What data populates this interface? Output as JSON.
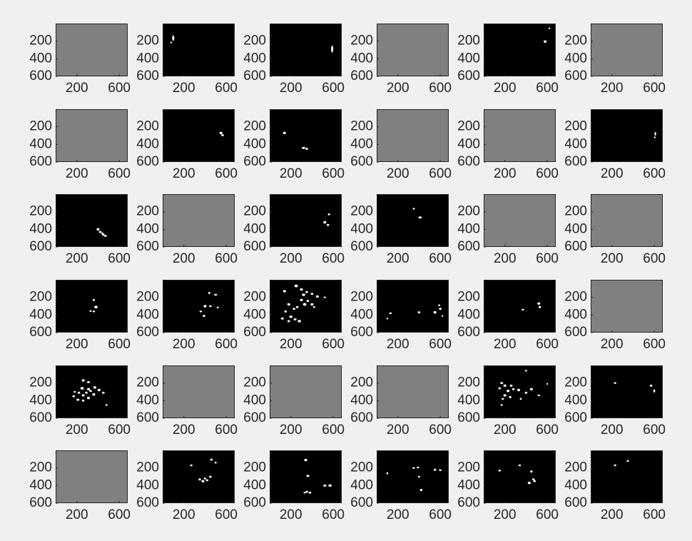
{
  "chart_data": {
    "type": "image-grid",
    "rows": 6,
    "cols": 6,
    "image_size": {
      "width": 680,
      "height": 600
    },
    "xticks": [
      200,
      600
    ],
    "yticks": [
      200,
      400,
      600
    ],
    "colors": {
      "figure_background": "#f0f0f0",
      "blank_panel": "#808080",
      "mask_background": "#000000",
      "blob": "#ffffff",
      "axis": "#262626"
    },
    "panels": [
      {
        "kind": "blank",
        "blobs": []
      },
      {
        "kind": "mask",
        "blobs": [
          [
            100,
            165,
            10,
            30
          ],
          [
            80,
            215,
            7,
            10
          ]
        ]
      },
      {
        "kind": "mask",
        "blobs": [
          [
            590,
            290,
            10,
            40
          ]
        ]
      },
      {
        "kind": "blank",
        "blobs": []
      },
      {
        "kind": "mask",
        "blobs": [
          [
            580,
            205,
            14,
            14
          ],
          [
            620,
            55,
            8,
            6
          ]
        ]
      },
      {
        "kind": "blank",
        "blobs": []
      },
      {
        "kind": "blank",
        "blobs": []
      },
      {
        "kind": "mask",
        "blobs": [
          [
            550,
            270,
            14,
            14
          ],
          [
            565,
            295,
            12,
            12
          ]
        ]
      },
      {
        "kind": "mask",
        "blobs": [
          [
            140,
            270,
            14,
            14
          ],
          [
            320,
            440,
            16,
            12
          ],
          [
            350,
            450,
            12,
            12
          ]
        ]
      },
      {
        "kind": "blank",
        "blobs": []
      },
      {
        "kind": "blank",
        "blobs": []
      },
      {
        "kind": "mask",
        "blobs": [
          [
            610,
            280,
            8,
            20
          ],
          [
            605,
            320,
            7,
            10
          ]
        ]
      },
      {
        "kind": "mask",
        "blobs": [
          [
            400,
            400,
            14,
            14
          ],
          [
            420,
            430,
            12,
            12
          ],
          [
            450,
            460,
            12,
            12
          ],
          [
            470,
            475,
            14,
            10
          ],
          [
            440,
            445,
            10,
            10
          ]
        ]
      },
      {
        "kind": "blank",
        "blobs": []
      },
      {
        "kind": "mask",
        "blobs": [
          [
            560,
            230,
            12,
            10
          ],
          [
            520,
            320,
            14,
            14
          ],
          [
            550,
            350,
            12,
            12
          ]
        ]
      },
      {
        "kind": "mask",
        "blobs": [
          [
            350,
            165,
            10,
            10
          ],
          [
            410,
            265,
            16,
            12
          ]
        ]
      },
      {
        "kind": "blank",
        "blobs": []
      },
      {
        "kind": "blank",
        "blobs": []
      },
      {
        "kind": "mask",
        "blobs": [
          [
            360,
            230,
            10,
            12
          ],
          [
            380,
            310,
            16,
            16
          ],
          [
            360,
            360,
            12,
            10
          ],
          [
            330,
            355,
            10,
            8
          ]
        ]
      },
      {
        "kind": "mask",
        "blobs": [
          [
            440,
            150,
            10,
            12
          ],
          [
            500,
            170,
            14,
            10
          ],
          [
            520,
            315,
            10,
            10
          ],
          [
            400,
            300,
            14,
            14
          ],
          [
            360,
            360,
            12,
            10
          ],
          [
            390,
            410,
            12,
            12
          ],
          [
            450,
            300,
            12,
            10
          ]
        ]
      },
      {
        "kind": "mask",
        "blobs": [
          [
            140,
            130,
            14,
            14
          ],
          [
            250,
            70,
            16,
            16
          ],
          [
            300,
            110,
            14,
            14
          ],
          [
            320,
            170,
            16,
            14
          ],
          [
            350,
            140,
            12,
            12
          ],
          [
            400,
            160,
            12,
            12
          ],
          [
            450,
            190,
            14,
            14
          ],
          [
            300,
            230,
            14,
            14
          ],
          [
            330,
            280,
            16,
            16
          ],
          [
            400,
            280,
            14,
            14
          ],
          [
            180,
            280,
            14,
            14
          ],
          [
            230,
            330,
            12,
            12
          ],
          [
            200,
            420,
            16,
            14
          ],
          [
            240,
            450,
            14,
            12
          ],
          [
            280,
            470,
            16,
            14
          ],
          [
            180,
            470,
            12,
            12
          ],
          [
            120,
            440,
            14,
            12
          ],
          [
            260,
            310,
            12,
            12
          ],
          [
            420,
            310,
            10,
            10
          ],
          [
            520,
            200,
            10,
            10
          ],
          [
            360,
            240,
            12,
            12
          ],
          [
            150,
            360,
            12,
            12
          ]
        ]
      },
      {
        "kind": "mask",
        "blobs": [
          [
            130,
            380,
            12,
            10
          ],
          [
            100,
            440,
            8,
            8
          ],
          [
            400,
            370,
            12,
            12
          ],
          [
            550,
            370,
            14,
            14
          ],
          [
            600,
            330,
            12,
            12
          ],
          [
            590,
            290,
            10,
            10
          ],
          [
            620,
            410,
            8,
            8
          ]
        ]
      },
      {
        "kind": "mask",
        "blobs": [
          [
            370,
            340,
            12,
            10
          ],
          [
            520,
            270,
            14,
            14
          ],
          [
            530,
            310,
            12,
            12
          ]
        ]
      },
      {
        "kind": "blank",
        "blobs": []
      },
      {
        "kind": "mask",
        "blobs": [
          [
            260,
            170,
            14,
            14
          ],
          [
            310,
            190,
            14,
            12
          ],
          [
            250,
            260,
            16,
            16
          ],
          [
            310,
            270,
            14,
            14
          ],
          [
            370,
            250,
            14,
            14
          ],
          [
            410,
            280,
            14,
            14
          ],
          [
            450,
            310,
            12,
            12
          ],
          [
            260,
            340,
            14,
            14
          ],
          [
            310,
            370,
            14,
            14
          ],
          [
            360,
            330,
            14,
            14
          ],
          [
            220,
            310,
            12,
            12
          ],
          [
            180,
            300,
            10,
            10
          ],
          [
            170,
            350,
            12,
            12
          ],
          [
            210,
            390,
            14,
            12
          ],
          [
            260,
            400,
            12,
            12
          ],
          [
            480,
            450,
            10,
            10
          ],
          [
            330,
            290,
            12,
            12
          ],
          [
            290,
            310,
            12,
            12
          ]
        ]
      },
      {
        "kind": "blank",
        "blobs": []
      },
      {
        "kind": "blank",
        "blobs": []
      },
      {
        "kind": "blank",
        "blobs": []
      },
      {
        "kind": "mask",
        "blobs": [
          [
            170,
            200,
            14,
            12
          ],
          [
            200,
            230,
            14,
            14
          ],
          [
            150,
            260,
            12,
            12
          ],
          [
            230,
            290,
            14,
            14
          ],
          [
            280,
            270,
            12,
            12
          ],
          [
            200,
            340,
            14,
            14
          ],
          [
            250,
            360,
            12,
            12
          ],
          [
            180,
            380,
            12,
            10
          ],
          [
            330,
            280,
            14,
            14
          ],
          [
            400,
            310,
            12,
            12
          ],
          [
            450,
            270,
            14,
            14
          ],
          [
            520,
            340,
            12,
            10
          ],
          [
            600,
            210,
            8,
            8
          ],
          [
            400,
            60,
            10,
            6
          ],
          [
            350,
            380,
            10,
            10
          ],
          [
            170,
            450,
            10,
            8
          ],
          [
            260,
            230,
            12,
            12
          ]
        ]
      },
      {
        "kind": "mask",
        "blobs": [
          [
            230,
            200,
            12,
            10
          ],
          [
            570,
            230,
            12,
            12
          ],
          [
            600,
            290,
            7,
            18
          ]
        ]
      },
      {
        "kind": "blank",
        "blobs": []
      },
      {
        "kind": "mask",
        "blobs": [
          [
            270,
            170,
            12,
            10
          ],
          [
            460,
            105,
            12,
            12
          ],
          [
            500,
            140,
            10,
            10
          ],
          [
            350,
            330,
            12,
            12
          ],
          [
            380,
            350,
            14,
            14
          ],
          [
            420,
            340,
            12,
            12
          ],
          [
            450,
            300,
            12,
            12
          ],
          [
            400,
            320,
            12,
            10
          ]
        ]
      },
      {
        "kind": "mask",
        "blobs": [
          [
            340,
            110,
            14,
            14
          ],
          [
            360,
            290,
            14,
            12
          ],
          [
            570,
            400,
            16,
            14
          ],
          [
            520,
            400,
            14,
            12
          ],
          [
            350,
            470,
            12,
            12
          ],
          [
            380,
            480,
            12,
            12
          ],
          [
            330,
            480,
            10,
            10
          ]
        ]
      },
      {
        "kind": "mask",
        "blobs": [
          [
            100,
            260,
            8,
            12
          ],
          [
            350,
            200,
            12,
            10
          ],
          [
            390,
            195,
            12,
            10
          ],
          [
            550,
            220,
            12,
            12
          ],
          [
            600,
            225,
            12,
            10
          ],
          [
            400,
            300,
            10,
            10
          ],
          [
            420,
            450,
            12,
            12
          ]
        ]
      },
      {
        "kind": "mask",
        "blobs": [
          [
            150,
            230,
            12,
            10
          ],
          [
            340,
            170,
            12,
            10
          ],
          [
            450,
            240,
            12,
            12
          ],
          [
            470,
            330,
            12,
            12
          ],
          [
            430,
            370,
            14,
            14
          ],
          [
            480,
            350,
            12,
            12
          ]
        ]
      },
      {
        "kind": "mask",
        "blobs": [
          [
            230,
            170,
            12,
            10
          ],
          [
            350,
            120,
            12,
            10
          ]
        ]
      }
    ]
  }
}
